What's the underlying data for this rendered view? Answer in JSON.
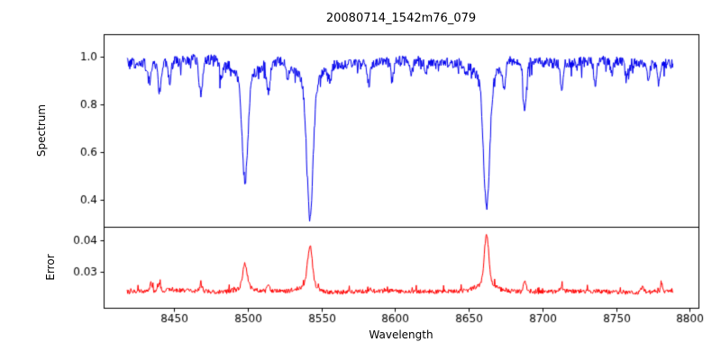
{
  "chart_data": {
    "type": "line",
    "title": "20080714_1542m76_079",
    "xlabel": "Wavelength",
    "xlim": [
      8402,
      8806
    ],
    "x_ticks": [
      8450,
      8500,
      8550,
      8600,
      8650,
      8700,
      8750,
      8800
    ],
    "x_tick_labels": [
      "8450",
      "8500",
      "8550",
      "8600",
      "8650",
      "8700",
      "8750",
      "8800"
    ],
    "x_range": [
      8418,
      8789
    ],
    "x_step": 0.35,
    "grid": false,
    "legend": "none",
    "panels": [
      {
        "name": "spectrum",
        "ylabel": "Spectrum",
        "line_color": "#0000ee",
        "ylim": [
          0.287,
          1.094
        ],
        "y_ticks": [
          0.4,
          0.6,
          0.8,
          1.0
        ],
        "y_tick_labels": [
          "0.4",
          "0.6",
          "0.8",
          "1.0"
        ],
        "continuum_level": 0.978,
        "noise_amplitude": 0.022,
        "absorption_lines": [
          {
            "wavelength": 8433,
            "depth_to": 0.9,
            "sigma": 1.0
          },
          {
            "wavelength": 8440,
            "depth_to": 0.86,
            "sigma": 1.1
          },
          {
            "wavelength": 8447,
            "depth_to": 0.89,
            "sigma": 0.9
          },
          {
            "wavelength": 8468,
            "depth_to": 0.83,
            "sigma": 1.2
          },
          {
            "wavelength": 8482,
            "depth_to": 0.9,
            "sigma": 1.0
          },
          {
            "wavelength": 8498.0,
            "depth_to": 0.48,
            "sigma": 1.9
          },
          {
            "wavelength": 8514,
            "depth_to": 0.86,
            "sigma": 1.1
          },
          {
            "wavelength": 8527,
            "depth_to": 0.91,
            "sigma": 1.0
          },
          {
            "wavelength": 8542.1,
            "depth_to": 0.33,
            "sigma": 2.1
          },
          {
            "wavelength": 8556,
            "depth_to": 0.92,
            "sigma": 0.9
          },
          {
            "wavelength": 8582,
            "depth_to": 0.89,
            "sigma": 1.0
          },
          {
            "wavelength": 8598,
            "depth_to": 0.9,
            "sigma": 1.0
          },
          {
            "wavelength": 8611,
            "depth_to": 0.92,
            "sigma": 0.9
          },
          {
            "wavelength": 8621,
            "depth_to": 0.93,
            "sigma": 0.9
          },
          {
            "wavelength": 8648,
            "depth_to": 0.93,
            "sigma": 0.9
          },
          {
            "wavelength": 8662.1,
            "depth_to": 0.36,
            "sigma": 2.0
          },
          {
            "wavelength": 8674,
            "depth_to": 0.88,
            "sigma": 1.0
          },
          {
            "wavelength": 8688,
            "depth_to": 0.78,
            "sigma": 1.2
          },
          {
            "wavelength": 8713,
            "depth_to": 0.88,
            "sigma": 1.0
          },
          {
            "wavelength": 8736,
            "depth_to": 0.89,
            "sigma": 1.0
          },
          {
            "wavelength": 8747,
            "depth_to": 0.92,
            "sigma": 0.9
          },
          {
            "wavelength": 8757,
            "depth_to": 0.91,
            "sigma": 0.9
          },
          {
            "wavelength": 8772,
            "depth_to": 0.92,
            "sigma": 0.9
          },
          {
            "wavelength": 8779,
            "depth_to": 0.9,
            "sigma": 0.9
          }
        ]
      },
      {
        "name": "error",
        "ylabel": "Error",
        "line_color": "#ff0000",
        "ylim": [
          0.0186,
          0.0443
        ],
        "y_ticks": [
          0.03,
          0.04
        ],
        "y_tick_labels": [
          "0.03",
          "0.04"
        ],
        "baseline_level": 0.0238,
        "noise_amplitude": 0.0007,
        "peaks": [
          {
            "wavelength": 8434,
            "height_to": 0.0262,
            "sigma": 0.8
          },
          {
            "wavelength": 8440,
            "height_to": 0.0258,
            "sigma": 0.8
          },
          {
            "wavelength": 8468,
            "height_to": 0.0258,
            "sigma": 0.9
          },
          {
            "wavelength": 8498.0,
            "height_to": 0.0325,
            "sigma": 1.5
          },
          {
            "wavelength": 8514,
            "height_to": 0.0258,
            "sigma": 0.9
          },
          {
            "wavelength": 8542.1,
            "height_to": 0.0385,
            "sigma": 1.6
          },
          {
            "wavelength": 8662.1,
            "height_to": 0.0415,
            "sigma": 1.5
          },
          {
            "wavelength": 8688,
            "height_to": 0.0268,
            "sigma": 1.0
          },
          {
            "wavelength": 8713,
            "height_to": 0.0255,
            "sigma": 0.9
          },
          {
            "wavelength": 8768,
            "height_to": 0.0258,
            "sigma": 0.9
          },
          {
            "wavelength": 8781,
            "height_to": 0.0262,
            "sigma": 0.8
          }
        ]
      }
    ]
  }
}
